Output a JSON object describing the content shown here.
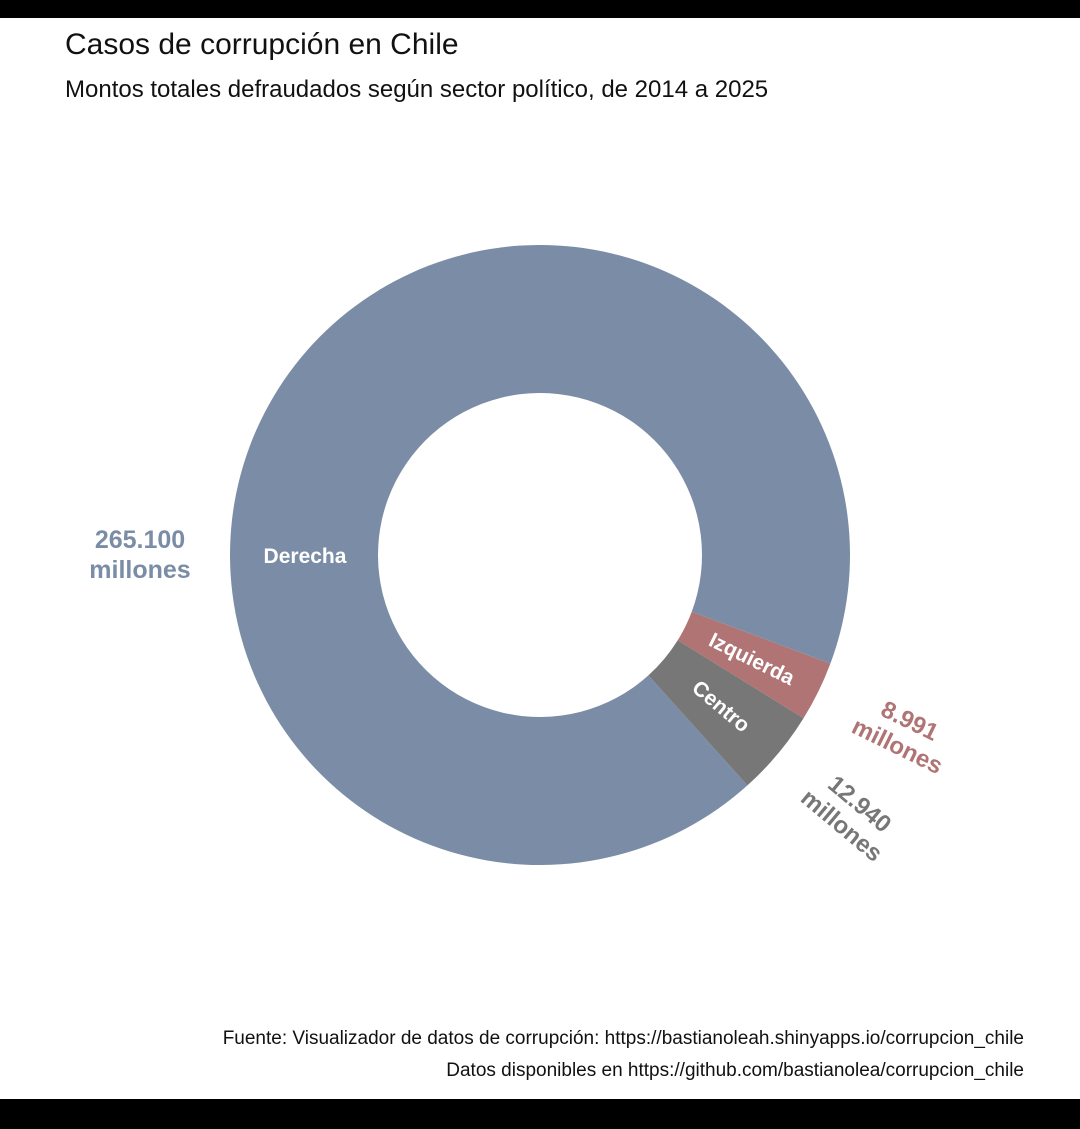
{
  "title": "Casos de corrupción en Chile",
  "subtitle": "Montos totales defraudados según sector político, de 2014 a 2025",
  "caption": {
    "line1": "Fuente: Visualizador de datos de corrupción: https://bastianoleah.shinyapps.io/corrupcion_chile",
    "line2": "Datos disponibles en https://github.com/bastianolea/corrupcion_chile"
  },
  "chart_data": {
    "type": "pie",
    "variant": "donut",
    "unit": "millones",
    "slices": [
      {
        "name": "Derecha",
        "value": 265100,
        "value_label": "265.100",
        "unit_label": "millones",
        "color": "#7b8da6"
      },
      {
        "name": "Centro",
        "value": 12940,
        "value_label": "12.940",
        "unit_label": "millones",
        "color": "#777777"
      },
      {
        "name": "Izquierda",
        "value": 8991,
        "value_label": "8.991",
        "unit_label": "millones",
        "color": "#b07475"
      }
    ]
  }
}
